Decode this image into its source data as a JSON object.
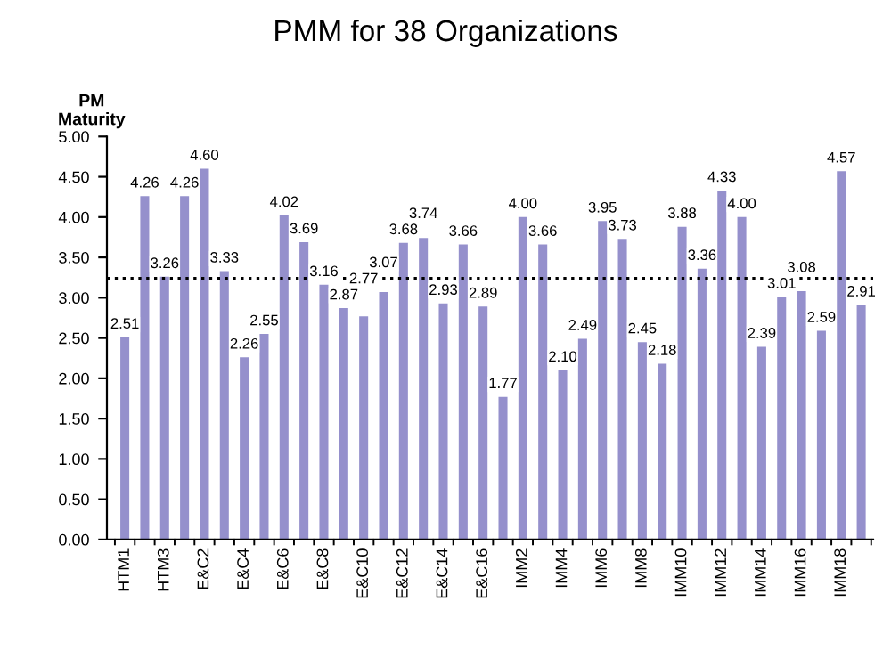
{
  "chart_data": {
    "type": "bar",
    "title": "PMM for 38 Organizations",
    "ylabel": "PM\nMaturity",
    "categories": [
      "HTM1",
      null,
      "HTM3",
      null,
      "E&C2",
      null,
      "E&C4",
      null,
      "E&C6",
      null,
      "E&C8",
      null,
      "E&C10",
      null,
      "E&C12",
      null,
      "E&C14",
      null,
      "E&C16",
      null,
      "IMM2",
      null,
      "IMM4",
      null,
      "IMM6",
      null,
      "IMM8",
      null,
      "IMM10",
      null,
      "IMM12",
      null,
      "IMM14",
      null,
      "IMM16",
      null,
      "IMM18",
      null
    ],
    "values": [
      2.51,
      4.26,
      3.26,
      4.26,
      4.6,
      3.33,
      2.26,
      2.55,
      4.02,
      3.69,
      3.16,
      2.87,
      2.77,
      3.07,
      3.68,
      3.74,
      2.93,
      3.66,
      2.89,
      1.77,
      4.0,
      3.66,
      2.1,
      2.49,
      3.95,
      3.73,
      2.45,
      2.18,
      3.88,
      3.36,
      4.33,
      4.0,
      2.39,
      3.01,
      3.08,
      2.59,
      4.57,
      2.91
    ],
    "value_labels": [
      "2.51",
      "4.26",
      "3.26",
      "4.26",
      "4.60",
      "3.33",
      "2.26",
      "2.55",
      "4.02",
      "3.69",
      "3.16",
      "2.87",
      "2.77",
      "3.07",
      "3.68",
      "3.74",
      "2.93",
      "3.66",
      "2.89",
      "1.77",
      "4.00",
      "3.66",
      "2.10",
      "2.49",
      "3.95",
      "3.73",
      "2.45",
      "2.18",
      "3.88",
      "3.36",
      "4.33",
      "4.00",
      "2.39",
      "3.01",
      "3.08",
      "2.59",
      "4.57",
      "2.91"
    ],
    "color": "#9590cc",
    "ylim": [
      0,
      5
    ],
    "yticks": [
      {
        "value": 0,
        "label": "0.00"
      },
      {
        "value": 0.5,
        "label": "0.50"
      },
      {
        "value": 1,
        "label": "1.00"
      },
      {
        "value": 1.5,
        "label": "1.50"
      },
      {
        "value": 2,
        "label": "2.00"
      },
      {
        "value": 2.5,
        "label": "2.50"
      },
      {
        "value": 3,
        "label": "3.00"
      },
      {
        "value": 3.5,
        "label": "3.50"
      },
      {
        "value": 4,
        "label": "4.00"
      },
      {
        "value": 4.5,
        "label": "4.50"
      },
      {
        "value": 5,
        "label": "5.00"
      }
    ],
    "ref_lines": [
      {
        "axis": "y",
        "value": 3.24,
        "color": "#000000",
        "line_style": "dotted"
      }
    ],
    "grid": false,
    "legend": false
  }
}
